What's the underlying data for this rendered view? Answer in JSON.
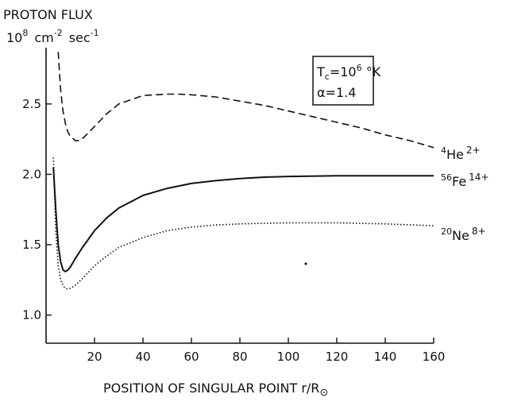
{
  "chart_data": {
    "type": "line",
    "ylabel_line1": "PROTON FLUX",
    "ylabel_unit_base": "10",
    "ylabel_unit_exp": "8",
    "ylabel_unit_cm": "cm",
    "ylabel_unit_cm_exp": "-2",
    "ylabel_unit_sec": "sec",
    "ylabel_unit_sec_exp": "-1",
    "xlabel_text": "POSITION OF SINGULAR POINT  r/R",
    "xlabel_symbol": "⊙",
    "xlim": [
      0,
      160
    ],
    "ylim": [
      0.8,
      2.9
    ],
    "xticks": [
      20,
      40,
      60,
      80,
      100,
      120,
      140,
      160
    ],
    "yticks": [
      1.0,
      1.5,
      2.0,
      2.5
    ],
    "yticklabels": [
      "1.0",
      "1.5",
      "2.0",
      "2.5"
    ],
    "annotation": {
      "line1_pre": "T",
      "line1_sub": "c",
      "line1_mid": "=10",
      "line1_sup": "6",
      "line1_post": " °K",
      "line2": "α=1.4"
    },
    "series": [
      {
        "id": "he",
        "label_mass": "4",
        "label_elem": "He",
        "label_charge": "2+",
        "style": "dashed",
        "x": [
          5,
          6,
          7,
          8,
          9,
          10,
          12,
          14,
          16,
          20,
          25,
          30,
          40,
          50,
          55,
          60,
          70,
          80,
          90,
          100,
          110,
          120,
          130,
          140,
          150,
          160
        ],
        "y": [
          2.87,
          2.6,
          2.45,
          2.36,
          2.3,
          2.27,
          2.24,
          2.24,
          2.27,
          2.34,
          2.43,
          2.5,
          2.56,
          2.57,
          2.57,
          2.565,
          2.55,
          2.52,
          2.49,
          2.45,
          2.41,
          2.37,
          2.33,
          2.28,
          2.24,
          2.19
        ]
      },
      {
        "id": "fe",
        "label_mass": "56",
        "label_elem": "Fe",
        "label_charge": "14+",
        "style": "solid",
        "x": [
          3,
          4,
          5,
          6,
          7,
          8,
          9,
          10,
          12,
          15,
          20,
          25,
          30,
          40,
          50,
          60,
          70,
          80,
          90,
          100,
          120,
          140,
          160
        ],
        "y": [
          2.05,
          1.75,
          1.5,
          1.38,
          1.32,
          1.31,
          1.32,
          1.34,
          1.4,
          1.48,
          1.6,
          1.69,
          1.76,
          1.85,
          1.9,
          1.935,
          1.955,
          1.97,
          1.98,
          1.985,
          1.99,
          1.99,
          1.99
        ]
      },
      {
        "id": "ne",
        "label_mass": "20",
        "label_elem": "Ne",
        "label_charge": "8+",
        "style": "dotted",
        "x": [
          3,
          4,
          5,
          6,
          7,
          8,
          9,
          10,
          12,
          15,
          20,
          25,
          30,
          40,
          50,
          60,
          70,
          80,
          90,
          100,
          120,
          140,
          160
        ],
        "y": [
          2.12,
          1.6,
          1.35,
          1.25,
          1.21,
          1.19,
          1.185,
          1.19,
          1.21,
          1.26,
          1.35,
          1.42,
          1.48,
          1.55,
          1.6,
          1.625,
          1.64,
          1.648,
          1.652,
          1.655,
          1.655,
          1.648,
          1.635
        ]
      }
    ]
  }
}
